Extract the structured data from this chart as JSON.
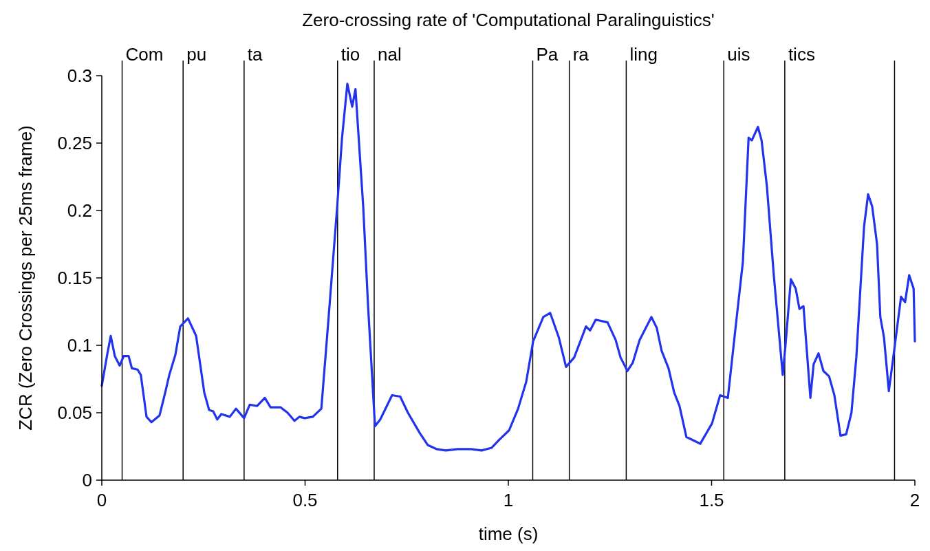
{
  "chart_data": {
    "type": "line",
    "title": "Zero-crossing rate of 'Computational Paralinguistics'",
    "xlabel": "time (s)",
    "ylabel": "ZCR (Zero Crossings per 25ms frame)",
    "xlim": [
      0,
      2
    ],
    "xticks": [
      0,
      0.5,
      1,
      1.5,
      2
    ],
    "ylim": [
      0,
      0.3
    ],
    "yticks": [
      0,
      0.05,
      0.1,
      0.15,
      0.2,
      0.25,
      0.3
    ],
    "grid": false,
    "marker": "none",
    "line_style": "solid",
    "series": [
      {
        "color": "#2233ee",
        "x": [
          0,
          0.012,
          0.022,
          0.032,
          0.044,
          0.054,
          0.066,
          0.074,
          0.088,
          0.096,
          0.11,
          0.122,
          0.142,
          0.156,
          0.166,
          0.181,
          0.193,
          0.212,
          0.232,
          0.252,
          0.264,
          0.274,
          0.284,
          0.294,
          0.315,
          0.33,
          0.35,
          0.364,
          0.382,
          0.401,
          0.415,
          0.44,
          0.457,
          0.474,
          0.486,
          0.499,
          0.519,
          0.54,
          0.558,
          0.579,
          0.591,
          0.604,
          0.616,
          0.624,
          0.643,
          0.655,
          0.672,
          0.685,
          0.714,
          0.734,
          0.753,
          0.782,
          0.802,
          0.824,
          0.846,
          0.875,
          0.909,
          0.934,
          0.959,
          0.978,
          1.002,
          1.024,
          1.044,
          1.061,
          1.086,
          1.103,
          1.124,
          1.142,
          1.162,
          1.191,
          1.201,
          1.215,
          1.244,
          1.264,
          1.276,
          1.293,
          1.306,
          1.323,
          1.352,
          1.365,
          1.377,
          1.394,
          1.408,
          1.421,
          1.438,
          1.472,
          1.501,
          1.521,
          1.54,
          1.56,
          1.577,
          1.591,
          1.599,
          1.614,
          1.623,
          1.636,
          1.653,
          1.675,
          1.682,
          1.695,
          1.707,
          1.716,
          1.726,
          1.743,
          1.751,
          1.763,
          1.775,
          1.789,
          1.802,
          1.817,
          1.831,
          1.844,
          1.856,
          1.875,
          1.885,
          1.895,
          1.907,
          1.915,
          1.924,
          1.936,
          1.949,
          1.966,
          1.976,
          1.986,
          1.997,
          2
        ],
        "values": [
          0.07,
          0.091,
          0.107,
          0.092,
          0.085,
          0.092,
          0.092,
          0.083,
          0.082,
          0.078,
          0.047,
          0.043,
          0.048,
          0.065,
          0.078,
          0.093,
          0.114,
          0.12,
          0.107,
          0.065,
          0.052,
          0.051,
          0.045,
          0.049,
          0.047,
          0.053,
          0.046,
          0.056,
          0.055,
          0.061,
          0.054,
          0.054,
          0.05,
          0.044,
          0.047,
          0.046,
          0.047,
          0.053,
          0.121,
          0.203,
          0.254,
          0.294,
          0.277,
          0.29,
          0.203,
          0.129,
          0.04,
          0.045,
          0.063,
          0.062,
          0.05,
          0.035,
          0.026,
          0.023,
          0.022,
          0.023,
          0.023,
          0.022,
          0.024,
          0.03,
          0.037,
          0.053,
          0.073,
          0.103,
          0.121,
          0.124,
          0.106,
          0.084,
          0.091,
          0.114,
          0.111,
          0.119,
          0.117,
          0.104,
          0.091,
          0.081,
          0.087,
          0.104,
          0.121,
          0.113,
          0.096,
          0.083,
          0.065,
          0.055,
          0.032,
          0.027,
          0.042,
          0.063,
          0.061,
          0.116,
          0.162,
          0.254,
          0.252,
          0.262,
          0.252,
          0.218,
          0.152,
          0.078,
          0.101,
          0.149,
          0.142,
          0.127,
          0.129,
          0.061,
          0.086,
          0.094,
          0.081,
          0.077,
          0.063,
          0.033,
          0.034,
          0.05,
          0.091,
          0.188,
          0.212,
          0.203,
          0.175,
          0.121,
          0.106,
          0.066,
          0.096,
          0.136,
          0.132,
          0.152,
          0.142,
          0.103
        ]
      }
    ],
    "ref_lines": [
      {
        "axis": "x",
        "value": 0.05,
        "label": "Com"
      },
      {
        "axis": "x",
        "value": 0.2,
        "label": "pu"
      },
      {
        "axis": "x",
        "value": 0.35,
        "label": "ta"
      },
      {
        "axis": "x",
        "value": 0.58,
        "label": "tio"
      },
      {
        "axis": "x",
        "value": 0.67,
        "label": "nal"
      },
      {
        "axis": "x",
        "value": 1.06,
        "label": "Pa"
      },
      {
        "axis": "x",
        "value": 1.15,
        "label": "ra"
      },
      {
        "axis": "x",
        "value": 1.29,
        "label": "ling"
      },
      {
        "axis": "x",
        "value": 1.53,
        "label": "uis"
      },
      {
        "axis": "x",
        "value": 1.68,
        "label": "tics"
      },
      {
        "axis": "x",
        "value": 1.95,
        "label": null
      }
    ]
  }
}
